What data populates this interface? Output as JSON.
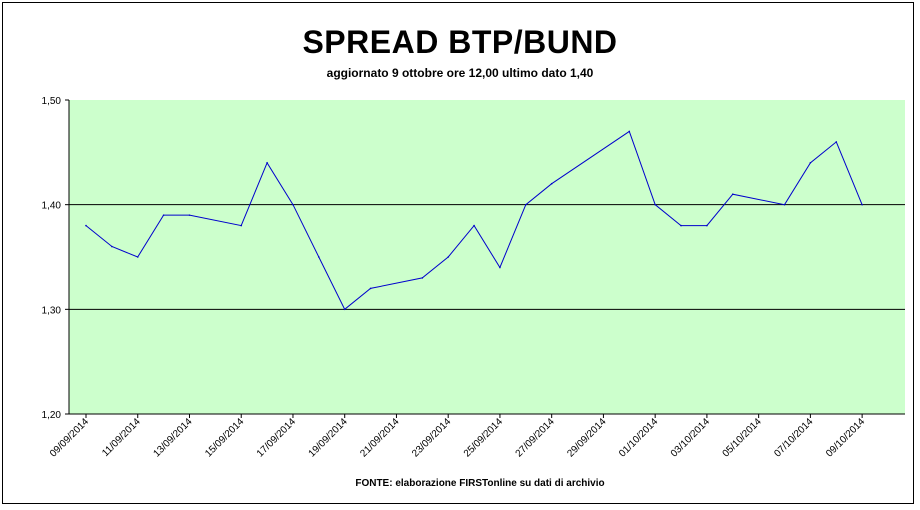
{
  "chart_data": {
    "type": "line",
    "title": "SPREAD BTP/BUND",
    "subtitle": "aggiornato 9 ottobre ore 12,00 ultimo dato 1,40",
    "source": "FONTE: elaborazione FIRSTonline su dati di archivio",
    "ylim": [
      1.2,
      1.5
    ],
    "y_ticks": [
      "1,20",
      "1,30",
      "1,40",
      "1,50"
    ],
    "x_ticks": [
      "09/09/2014",
      "11/09/2014",
      "13/09/2014",
      "15/09/2014",
      "17/09/2014",
      "19/09/2014",
      "21/09/2014",
      "23/09/2014",
      "25/09/2014",
      "27/09/2014",
      "29/09/2014",
      "01/10/2014",
      "03/10/2014",
      "05/10/2014",
      "07/10/2014",
      "09/10/2014"
    ],
    "x_range": [
      "09/09/2014",
      "10/10/2014"
    ],
    "gridlines": [
      1.3,
      1.4
    ],
    "series": [
      {
        "color": "#0000cc",
        "x": [
          "09/09/2014",
          "10/09/2014",
          "11/09/2014",
          "12/09/2014",
          "13/09/2014",
          "15/09/2014",
          "16/09/2014",
          "17/09/2014",
          "18/09/2014",
          "19/09/2014",
          "20/09/2014",
          "22/09/2014",
          "23/09/2014",
          "24/09/2014",
          "25/09/2014",
          "26/09/2014",
          "27/09/2014",
          "30/09/2014",
          "01/10/2014",
          "02/10/2014",
          "03/10/2014",
          "04/10/2014",
          "06/10/2014",
          "07/10/2014",
          "08/10/2014",
          "09/10/2014"
        ],
        "values": [
          1.38,
          1.36,
          1.35,
          1.39,
          1.39,
          1.38,
          1.44,
          1.4,
          1.35,
          1.3,
          1.32,
          1.33,
          1.35,
          1.38,
          1.34,
          1.4,
          1.42,
          1.47,
          1.4,
          1.38,
          1.38,
          1.41,
          1.4,
          1.44,
          1.46,
          1.4
        ]
      }
    ],
    "plot_background": "#ccffcc",
    "axis_color": "#000000"
  }
}
